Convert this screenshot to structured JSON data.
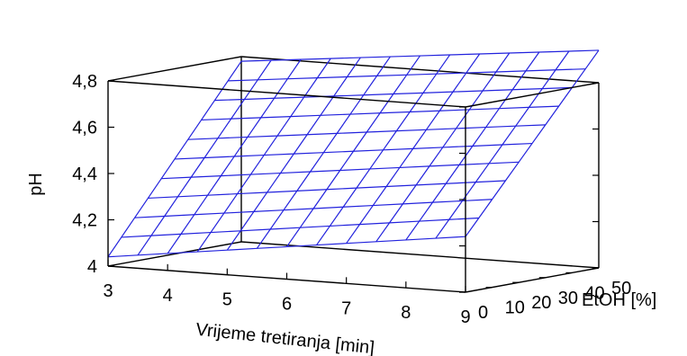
{
  "chart_data": {
    "type": "surface3d",
    "title": "",
    "xlabel": "Vrijeme tretiranja [min]",
    "ylabel": "EtOH [%]",
    "zlabel": "pH",
    "xlim": [
      3,
      9
    ],
    "ylim": [
      0,
      50
    ],
    "zlim": [
      4,
      4.8
    ],
    "x_ticks": [
      "3",
      "4",
      "5",
      "6",
      "7",
      "8",
      "9"
    ],
    "y_ticks": [
      "0",
      "10",
      "20",
      "30",
      "40",
      "50"
    ],
    "z_ticks": [
      "4",
      "4,2",
      "4,4",
      "4,6",
      "4,8"
    ],
    "grid_x_steps": 12,
    "grid_y_steps": 10,
    "surface_corners": {
      "z_at_x3_y0": 4.04,
      "z_at_x9_y0": 4.24,
      "z_at_x3_y50": 4.78,
      "z_at_x9_y50": 4.94
    },
    "surface_color": "#2222dd"
  }
}
